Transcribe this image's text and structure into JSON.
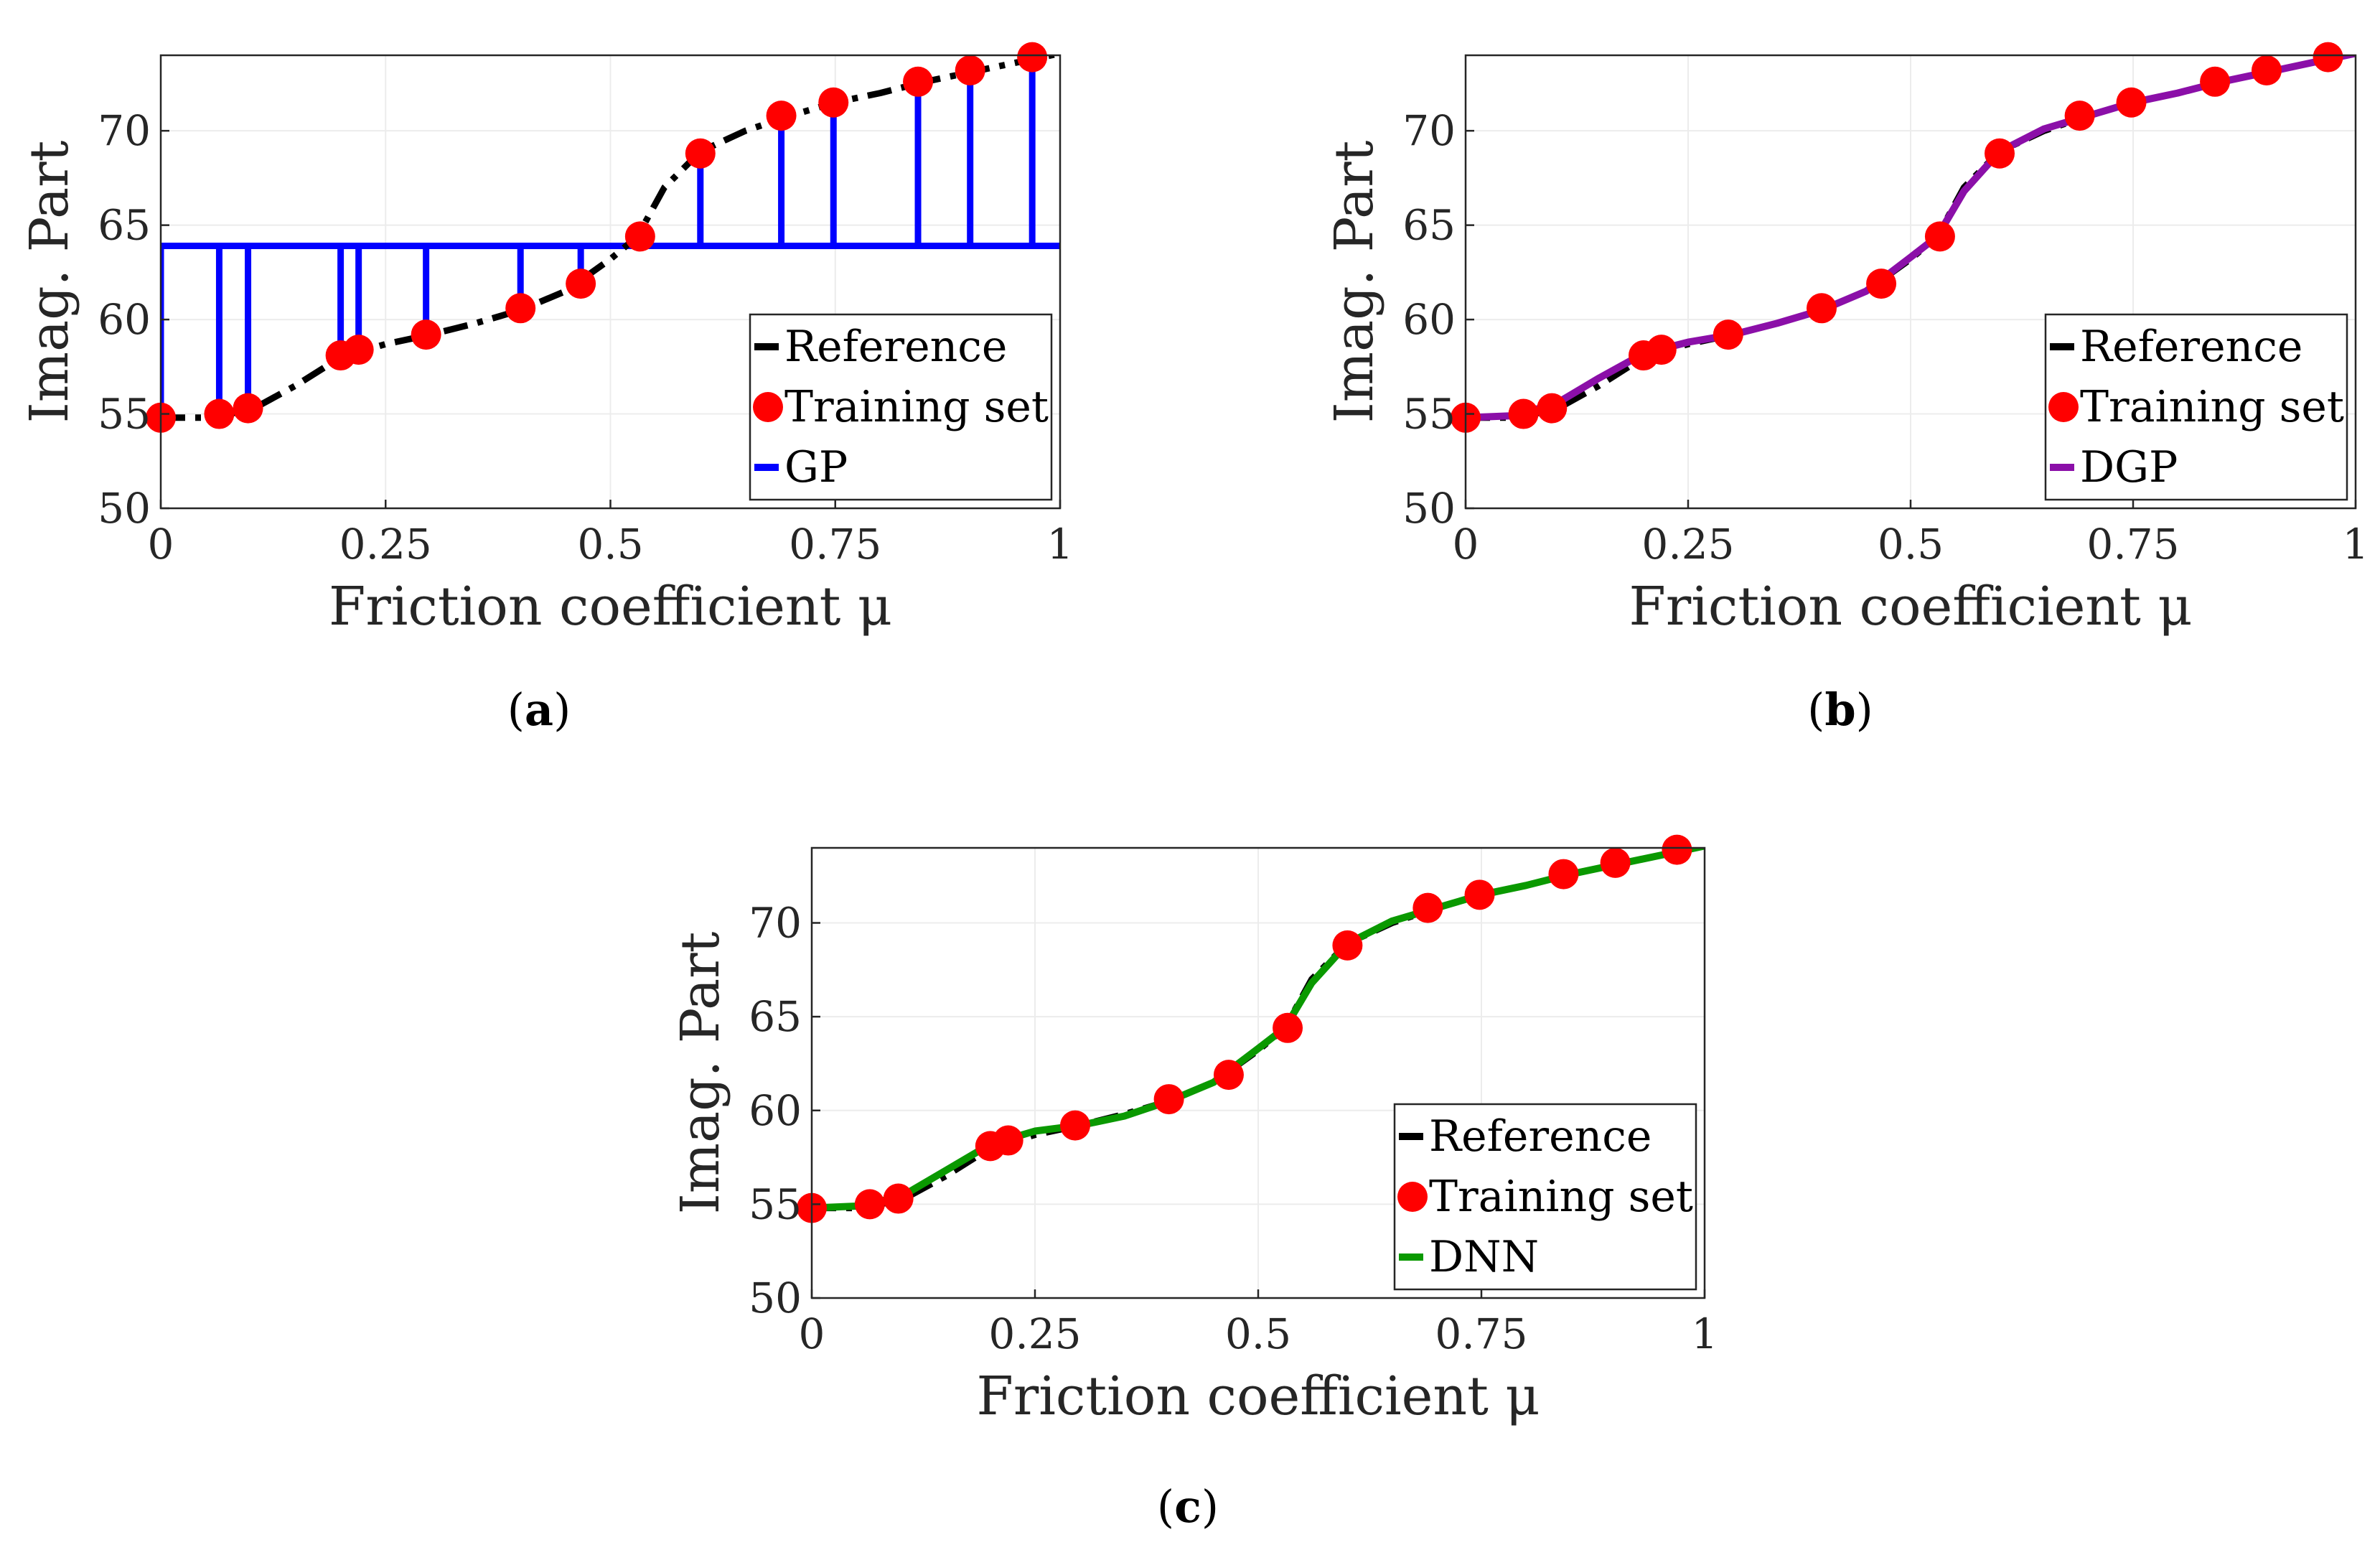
{
  "chart_data": [
    {
      "type": "line",
      "caption_letter": "a",
      "xlabel": "Friction coefficient μ",
      "ylabel": "Imag. Part",
      "xlim": [
        0,
        1
      ],
      "ylim": [
        50,
        74
      ],
      "xticks": [
        0,
        0.25,
        0.5,
        0.75,
        1
      ],
      "xtick_labels": [
        "0",
        "0.25",
        "0.5",
        "0.75",
        "1"
      ],
      "yticks": [
        50,
        55,
        60,
        65,
        70
      ],
      "ytick_labels": [
        "50",
        "55",
        "60",
        "65",
        "70"
      ],
      "grid": true,
      "legend_position": "lower-right",
      "series": [
        {
          "name": "Reference",
          "style": "dashdot",
          "color": "#000000",
          "x": [
            0,
            0.05,
            0.1,
            0.15,
            0.2,
            0.25,
            0.3,
            0.35,
            0.4,
            0.45,
            0.5,
            0.53,
            0.56,
            0.6,
            0.65,
            0.7,
            0.75,
            0.8,
            0.85,
            0.9,
            0.95,
            1.0
          ],
          "y": [
            54.8,
            54.8,
            55.2,
            56.5,
            58.0,
            58.7,
            59.2,
            59.8,
            60.5,
            61.5,
            63.2,
            64.4,
            67.0,
            68.9,
            70.0,
            70.8,
            71.5,
            72.0,
            72.6,
            73.1,
            73.6,
            74.1
          ]
        },
        {
          "name": "Training set",
          "style": "markers",
          "color": "#ff0000",
          "x": [
            0.0,
            0.065,
            0.097,
            0.2,
            0.22,
            0.295,
            0.4,
            0.467,
            0.533,
            0.6,
            0.69,
            0.748,
            0.842,
            0.9,
            0.969
          ],
          "y": [
            54.8,
            55.0,
            55.3,
            58.1,
            58.4,
            59.2,
            60.6,
            61.9,
            64.4,
            68.8,
            70.8,
            71.5,
            72.6,
            73.2,
            73.9
          ]
        },
        {
          "name": "GP",
          "style": "spikes",
          "color": "#0000ff",
          "baseline": 63.9,
          "x": [
            0.0,
            0.065,
            0.097,
            0.2,
            0.22,
            0.295,
            0.4,
            0.467,
            0.533,
            0.6,
            0.69,
            0.748,
            0.842,
            0.9,
            0.969
          ],
          "y": [
            54.8,
            55.0,
            55.3,
            58.1,
            58.4,
            59.2,
            60.6,
            61.9,
            64.4,
            68.8,
            70.8,
            71.5,
            72.6,
            73.2,
            73.9
          ]
        }
      ]
    },
    {
      "type": "line",
      "caption_letter": "b",
      "xlabel": "Friction coefficient μ",
      "ylabel": "Imag. Part",
      "xlim": [
        0,
        1
      ],
      "ylim": [
        50,
        74
      ],
      "xticks": [
        0,
        0.25,
        0.5,
        0.75,
        1
      ],
      "xtick_labels": [
        "0",
        "0.25",
        "0.5",
        "0.75",
        "1"
      ],
      "yticks": [
        50,
        55,
        60,
        65,
        70
      ],
      "ytick_labels": [
        "50",
        "55",
        "60",
        "65",
        "70"
      ],
      "grid": true,
      "legend_position": "lower-right",
      "series": [
        {
          "name": "Reference",
          "style": "dashdot",
          "color": "#000000",
          "x": [
            0,
            0.05,
            0.1,
            0.15,
            0.2,
            0.25,
            0.3,
            0.35,
            0.4,
            0.45,
            0.5,
            0.53,
            0.56,
            0.6,
            0.65,
            0.7,
            0.75,
            0.8,
            0.85,
            0.9,
            0.95,
            1.0
          ],
          "y": [
            54.8,
            54.8,
            55.2,
            56.5,
            58.0,
            58.7,
            59.2,
            59.8,
            60.5,
            61.5,
            63.2,
            64.4,
            67.0,
            68.9,
            70.0,
            70.8,
            71.5,
            72.0,
            72.6,
            73.1,
            73.6,
            74.1
          ]
        },
        {
          "name": "Training set",
          "style": "markers",
          "color": "#ff0000",
          "x": [
            0.0,
            0.065,
            0.097,
            0.2,
            0.22,
            0.295,
            0.4,
            0.467,
            0.533,
            0.6,
            0.69,
            0.748,
            0.842,
            0.9,
            0.969
          ],
          "y": [
            54.8,
            55.0,
            55.3,
            58.1,
            58.4,
            59.2,
            60.6,
            61.9,
            64.4,
            68.8,
            70.8,
            71.5,
            72.6,
            73.2,
            73.9
          ]
        },
        {
          "name": "DGP",
          "style": "solid",
          "color": "#8b0fa8",
          "x": [
            0,
            0.05,
            0.1,
            0.15,
            0.2,
            0.25,
            0.3,
            0.35,
            0.4,
            0.45,
            0.5,
            0.53,
            0.56,
            0.6,
            0.65,
            0.7,
            0.75,
            0.8,
            0.85,
            0.9,
            0.95,
            1.0
          ],
          "y": [
            54.8,
            54.9,
            55.5,
            56.9,
            58.2,
            58.8,
            59.2,
            59.8,
            60.5,
            61.5,
            63.3,
            64.4,
            66.8,
            68.9,
            70.1,
            70.8,
            71.5,
            72.0,
            72.6,
            73.1,
            73.6,
            74.1
          ]
        }
      ]
    },
    {
      "type": "line",
      "caption_letter": "c",
      "xlabel": "Friction coefficient μ",
      "ylabel": "Imag. Part",
      "xlim": [
        0,
        1
      ],
      "ylim": [
        50,
        74
      ],
      "xticks": [
        0,
        0.25,
        0.5,
        0.75,
        1
      ],
      "xtick_labels": [
        "0",
        "0.25",
        "0.5",
        "0.75",
        "1"
      ],
      "yticks": [
        50,
        55,
        60,
        65,
        70
      ],
      "ytick_labels": [
        "50",
        "55",
        "60",
        "65",
        "70"
      ],
      "grid": true,
      "legend_position": "lower-right",
      "series": [
        {
          "name": "Reference",
          "style": "dashdot",
          "color": "#000000",
          "x": [
            0,
            0.05,
            0.1,
            0.15,
            0.2,
            0.25,
            0.3,
            0.35,
            0.4,
            0.45,
            0.5,
            0.53,
            0.56,
            0.6,
            0.65,
            0.7,
            0.75,
            0.8,
            0.85,
            0.9,
            0.95,
            1.0
          ],
          "y": [
            54.8,
            54.8,
            55.2,
            56.5,
            58.0,
            58.7,
            59.2,
            59.8,
            60.5,
            61.5,
            63.2,
            64.4,
            67.0,
            68.9,
            70.0,
            70.8,
            71.5,
            72.0,
            72.6,
            73.1,
            73.6,
            74.1
          ]
        },
        {
          "name": "Training set",
          "style": "markers",
          "color": "#ff0000",
          "x": [
            0.0,
            0.065,
            0.097,
            0.2,
            0.22,
            0.295,
            0.4,
            0.467,
            0.533,
            0.6,
            0.69,
            0.748,
            0.842,
            0.9,
            0.969
          ],
          "y": [
            54.8,
            55.0,
            55.3,
            58.1,
            58.4,
            59.2,
            60.6,
            61.9,
            64.4,
            68.8,
            70.8,
            71.5,
            72.6,
            73.2,
            73.9
          ]
        },
        {
          "name": "DNN",
          "style": "solid",
          "color": "#0a9900",
          "x": [
            0,
            0.05,
            0.1,
            0.15,
            0.2,
            0.25,
            0.3,
            0.35,
            0.4,
            0.45,
            0.5,
            0.53,
            0.56,
            0.6,
            0.65,
            0.7,
            0.75,
            0.8,
            0.85,
            0.9,
            0.95,
            1.0
          ],
          "y": [
            54.8,
            54.9,
            55.4,
            56.8,
            58.2,
            58.9,
            59.2,
            59.7,
            60.5,
            61.5,
            63.3,
            64.4,
            66.8,
            68.9,
            70.1,
            70.8,
            71.5,
            72.0,
            72.6,
            73.1,
            73.6,
            74.1
          ]
        }
      ]
    }
  ]
}
